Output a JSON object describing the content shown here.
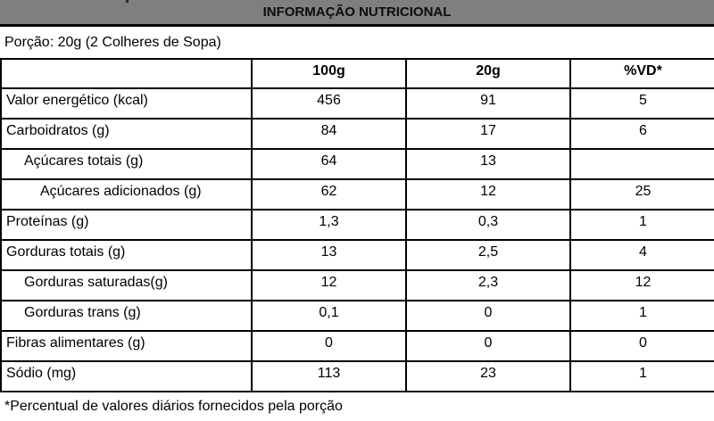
{
  "title_bar": {
    "title": "INFORMAÇÃO NUTRICIONAL"
  },
  "portion": {
    "text": "Porção: 20g (2 Colheres de Sopa)"
  },
  "table": {
    "columns": [
      "",
      "100g",
      "20g",
      "%VD*"
    ],
    "rows": [
      {
        "label": "Valor energético (kcal)",
        "per_100g": "456",
        "per_20g": "91",
        "vd_percent": "5"
      },
      {
        "label": "Carboidratos (g)",
        "per_100g": "84",
        "per_20g": "17",
        "vd_percent": "6"
      },
      {
        "label": "Açúcares totais (g)",
        "per_100g": "64",
        "per_20g": "13",
        "vd_percent": ""
      },
      {
        "label": "Açúcares adicionados (g)",
        "per_100g": "62",
        "per_20g": "12",
        "vd_percent": "25"
      },
      {
        "label": "Proteínas (g)",
        "per_100g": "1,3",
        "per_20g": "0,3",
        "vd_percent": "1"
      },
      {
        "label": "Gorduras totais (g)",
        "per_100g": "13",
        "per_20g": "2,5",
        "vd_percent": "4"
      },
      {
        "label": "Gorduras saturadas(g)",
        "per_100g": "12",
        "per_20g": "2,3",
        "vd_percent": "12"
      },
      {
        "label": "Gorduras trans (g)",
        "per_100g": "0,1",
        "per_20g": "0",
        "vd_percent": "1"
      },
      {
        "label": "Fibras alimentares (g)",
        "per_100g": "0",
        "per_20g": "0",
        "vd_percent": "0"
      },
      {
        "label": "Sódio (mg)",
        "per_100g": "113",
        "per_20g": "23",
        "vd_percent": "1"
      }
    ]
  },
  "footnote": {
    "text": "*Percentual de valores diários fornecidos pela porção"
  },
  "colors": {
    "header_background": "#7f7f7f",
    "border": "#000000",
    "text": "#000000"
  }
}
